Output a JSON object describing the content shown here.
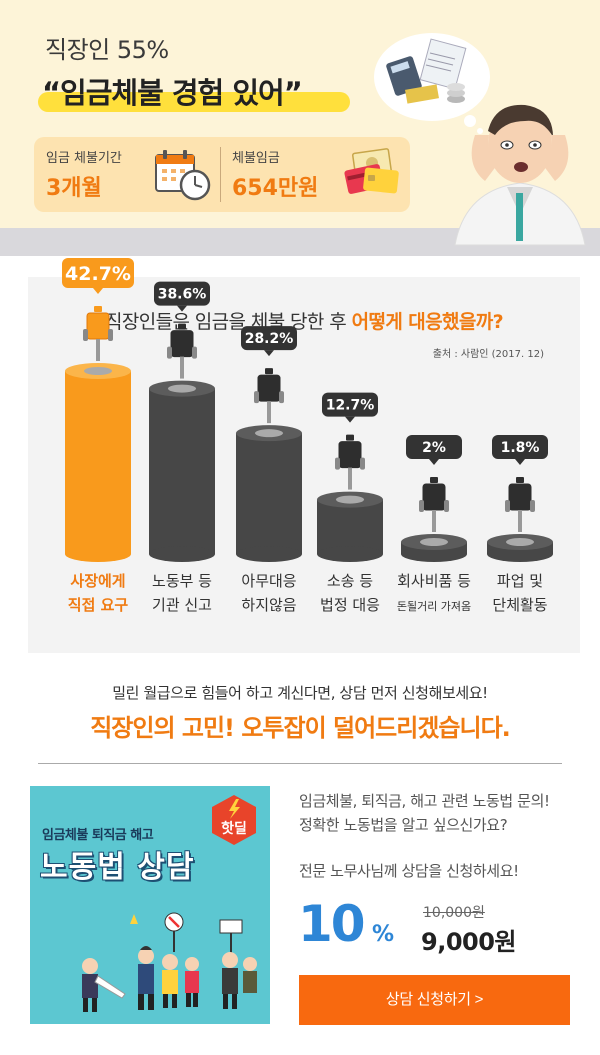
{
  "header": {
    "subtitle": "직장인 55%",
    "headline": "“임금체불 경험 있어”",
    "delay_label": "임금 체불기간",
    "delay_value": "3개월",
    "amount_label": "체불임금",
    "amount_value": "654만원",
    "icons": [
      "calendar-clock-icon",
      "money-cards-icon",
      "calculator-bills-icon"
    ]
  },
  "chart_data": {
    "type": "bar",
    "title_prefix": "직장인들은 임금을 체불 당한 후 ",
    "title_highlight": "어떻게 대응했을까?",
    "source": "출처 : 사람인 (2017. 12)",
    "categories": [
      [
        "사장에게",
        "직접 요구"
      ],
      [
        "노동부 등",
        "기관 신고"
      ],
      [
        "아무대응",
        "하지않음"
      ],
      [
        "소송 등",
        "법정 대응"
      ],
      [
        "회사비품 등",
        "돈될거리 가져옴"
      ],
      [
        "파업 및",
        "단체활동"
      ]
    ],
    "values": [
      42.7,
      38.6,
      28.2,
      12.7,
      2,
      1.8
    ],
    "value_labels": [
      "42.7%",
      "38.6%",
      "28.2%",
      "12.7%",
      "2%",
      "1.8%"
    ],
    "highlight_index": 0,
    "colors": {
      "highlight": "#f99a1c",
      "normal": "#474747",
      "label_highlight": "#f07b12",
      "label_normal": "#333333"
    }
  },
  "promo": {
    "line1": "밀린 월급으로 힘들어 하고 계신다면, 상담 먼저 신청해보세요!",
    "line2": "직장인의 고민! 오투잡이 덜어드리겠습니다."
  },
  "product": {
    "thumb_sub": "임금체불 퇴직금 해고",
    "thumb_main": "노동법 상담",
    "badge": "핫딜",
    "desc1": "임금체불, 퇴직금, 해고 관련 노동법 문의!",
    "desc2": "정확한 노동법을 알고 싶으신가요?",
    "desc3": "전문 노무사님께 상담을 신청하세요!",
    "discount": "10",
    "discount_sign": "%",
    "old_price": "10,000원",
    "new_price": "9,000원",
    "cta": "상담 신청하기 >"
  }
}
